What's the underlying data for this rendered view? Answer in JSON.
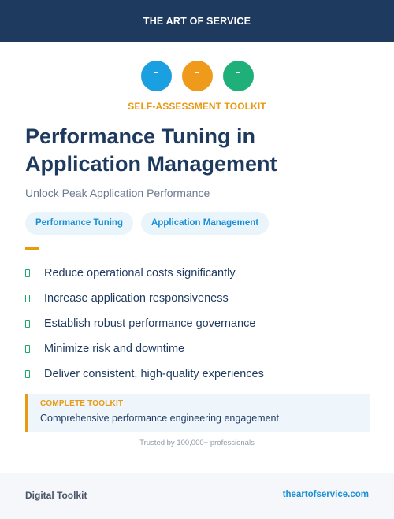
{
  "header": {
    "brand": "THE ART OF SERVICE"
  },
  "icons": [
    {
      "name": "icon-blue",
      "color": "#1a9fe0"
    },
    {
      "name": "icon-orange",
      "color": "#ef9a1a"
    },
    {
      "name": "icon-green",
      "color": "#1fb07a"
    }
  ],
  "kicker": "SELF-ASSESSMENT TOOLKIT",
  "title": "Performance Tuning in Application Management",
  "subtitle": "Unlock Peak Application Performance",
  "tags": [
    "Performance Tuning",
    "Application Management"
  ],
  "benefits": [
    "Reduce operational costs significantly",
    "Increase application responsiveness",
    "Establish robust performance governance",
    "Minimize risk and downtime",
    "Deliver consistent, high-quality experiences"
  ],
  "callout": {
    "label": "COMPLETE TOOLKIT",
    "text": "Comprehensive performance engineering engagement"
  },
  "trust": "Trusted by 100,000+ professionals",
  "footer": {
    "left": "Digital Toolkit",
    "right": "theartofservice.com"
  },
  "colors": {
    "navy": "#1e3a5f",
    "accent": "#e89a12",
    "link": "#1a8fd6",
    "check": "#1aa86b"
  }
}
